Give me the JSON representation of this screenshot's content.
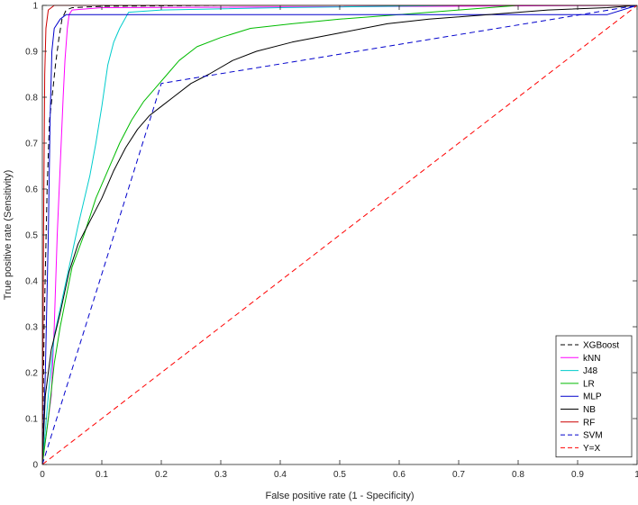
{
  "chart_data": {
    "type": "line",
    "title": "",
    "xlabel": "False positive rate (1 - Specificity)",
    "ylabel": "True positive rate (Sensitivity)",
    "xlim": [
      0,
      1
    ],
    "ylim": [
      0,
      1
    ],
    "x_ticks": [
      "0",
      "0.1",
      "0.2",
      "0.3",
      "0.4",
      "0.5",
      "0.6",
      "0.7",
      "0.8",
      "0.9",
      "1"
    ],
    "y_ticks": [
      "0",
      "0.1",
      "0.2",
      "0.3",
      "0.4",
      "0.5",
      "0.6",
      "0.7",
      "0.8",
      "0.9",
      "1"
    ],
    "grid": false,
    "legend_position": "bottom-right",
    "series": [
      {
        "name": "XGBoost",
        "color": "#000000",
        "dash": "dashed",
        "points": [
          [
            0,
            0
          ],
          [
            0.003,
            0.3
          ],
          [
            0.008,
            0.6
          ],
          [
            0.012,
            0.75
          ],
          [
            0.018,
            0.82
          ],
          [
            0.022,
            0.87
          ],
          [
            0.028,
            0.93
          ],
          [
            0.033,
            0.97
          ],
          [
            0.04,
            0.99
          ],
          [
            0.05,
            0.995
          ],
          [
            0.1,
            0.998
          ],
          [
            0.3,
            1
          ],
          [
            1,
            1
          ]
        ]
      },
      {
        "name": "kNN",
        "color": "#ff00ff",
        "dash": "solid",
        "points": [
          [
            0,
            0
          ],
          [
            0.005,
            0.05
          ],
          [
            0.015,
            0.15
          ],
          [
            0.02,
            0.3
          ],
          [
            0.025,
            0.5
          ],
          [
            0.03,
            0.65
          ],
          [
            0.035,
            0.8
          ],
          [
            0.038,
            0.88
          ],
          [
            0.042,
            0.95
          ],
          [
            0.045,
            0.98
          ],
          [
            0.05,
            0.99
          ],
          [
            0.1,
            0.995
          ],
          [
            1,
            1
          ]
        ]
      },
      {
        "name": "J48",
        "color": "#00cccc",
        "dash": "solid",
        "points": [
          [
            0,
            0
          ],
          [
            0.01,
            0.15
          ],
          [
            0.02,
            0.28
          ],
          [
            0.04,
            0.4
          ],
          [
            0.06,
            0.52
          ],
          [
            0.08,
            0.63
          ],
          [
            0.09,
            0.7
          ],
          [
            0.1,
            0.78
          ],
          [
            0.11,
            0.87
          ],
          [
            0.12,
            0.92
          ],
          [
            0.13,
            0.95
          ],
          [
            0.145,
            0.985
          ],
          [
            0.2,
            0.99
          ],
          [
            0.4,
            0.995
          ],
          [
            0.7,
            1
          ],
          [
            1,
            1
          ]
        ]
      },
      {
        "name": "LR",
        "color": "#00bb00",
        "dash": "solid",
        "points": [
          [
            0,
            0
          ],
          [
            0.01,
            0.1
          ],
          [
            0.02,
            0.22
          ],
          [
            0.03,
            0.3
          ],
          [
            0.05,
            0.43
          ],
          [
            0.07,
            0.5
          ],
          [
            0.09,
            0.58
          ],
          [
            0.11,
            0.64
          ],
          [
            0.13,
            0.7
          ],
          [
            0.15,
            0.75
          ],
          [
            0.17,
            0.79
          ],
          [
            0.19,
            0.82
          ],
          [
            0.21,
            0.85
          ],
          [
            0.23,
            0.88
          ],
          [
            0.26,
            0.91
          ],
          [
            0.3,
            0.93
          ],
          [
            0.35,
            0.95
          ],
          [
            0.42,
            0.96
          ],
          [
            0.5,
            0.97
          ],
          [
            0.6,
            0.98
          ],
          [
            0.7,
            0.99
          ],
          [
            0.8,
            1
          ],
          [
            1,
            1
          ]
        ]
      },
      {
        "name": "MLP",
        "color": "#0000cc",
        "dash": "solid",
        "points": [
          [
            0,
            0
          ],
          [
            0.005,
            0.2
          ],
          [
            0.01,
            0.5
          ],
          [
            0.013,
            0.75
          ],
          [
            0.016,
            0.9
          ],
          [
            0.02,
            0.95
          ],
          [
            0.03,
            0.97
          ],
          [
            0.04,
            0.98
          ],
          [
            0.2,
            0.98
          ],
          [
            0.5,
            0.98
          ],
          [
            0.8,
            0.98
          ],
          [
            0.95,
            0.98
          ],
          [
            1,
            1
          ]
        ]
      },
      {
        "name": "NB",
        "color": "#000000",
        "dash": "solid",
        "points": [
          [
            0,
            0
          ],
          [
            0.005,
            0.15
          ],
          [
            0.015,
            0.25
          ],
          [
            0.03,
            0.33
          ],
          [
            0.045,
            0.42
          ],
          [
            0.06,
            0.48
          ],
          [
            0.08,
            0.53
          ],
          [
            0.1,
            0.58
          ],
          [
            0.12,
            0.64
          ],
          [
            0.14,
            0.69
          ],
          [
            0.16,
            0.73
          ],
          [
            0.18,
            0.76
          ],
          [
            0.2,
            0.78
          ],
          [
            0.22,
            0.8
          ],
          [
            0.25,
            0.83
          ],
          [
            0.28,
            0.85
          ],
          [
            0.32,
            0.88
          ],
          [
            0.36,
            0.9
          ],
          [
            0.42,
            0.92
          ],
          [
            0.5,
            0.94
          ],
          [
            0.58,
            0.96
          ],
          [
            0.65,
            0.97
          ],
          [
            0.75,
            0.98
          ],
          [
            0.85,
            0.99
          ],
          [
            0.95,
            0.995
          ],
          [
            1,
            1
          ]
        ]
      },
      {
        "name": "RF",
        "color": "#cc0000",
        "dash": "solid",
        "points": [
          [
            0,
            0
          ],
          [
            0.002,
            0.5
          ],
          [
            0.004,
            0.85
          ],
          [
            0.006,
            0.95
          ],
          [
            0.01,
            0.99
          ],
          [
            0.02,
            1
          ],
          [
            1,
            1
          ]
        ]
      },
      {
        "name": "SVM",
        "color": "#0000cc",
        "dash": "dashed",
        "points": [
          [
            0,
            0
          ],
          [
            0.2,
            0.83
          ],
          [
            1,
            1
          ]
        ]
      },
      {
        "name": "Y=X",
        "color": "#ff0000",
        "dash": "dashed",
        "points": [
          [
            0,
            0
          ],
          [
            1,
            1
          ]
        ]
      }
    ]
  }
}
